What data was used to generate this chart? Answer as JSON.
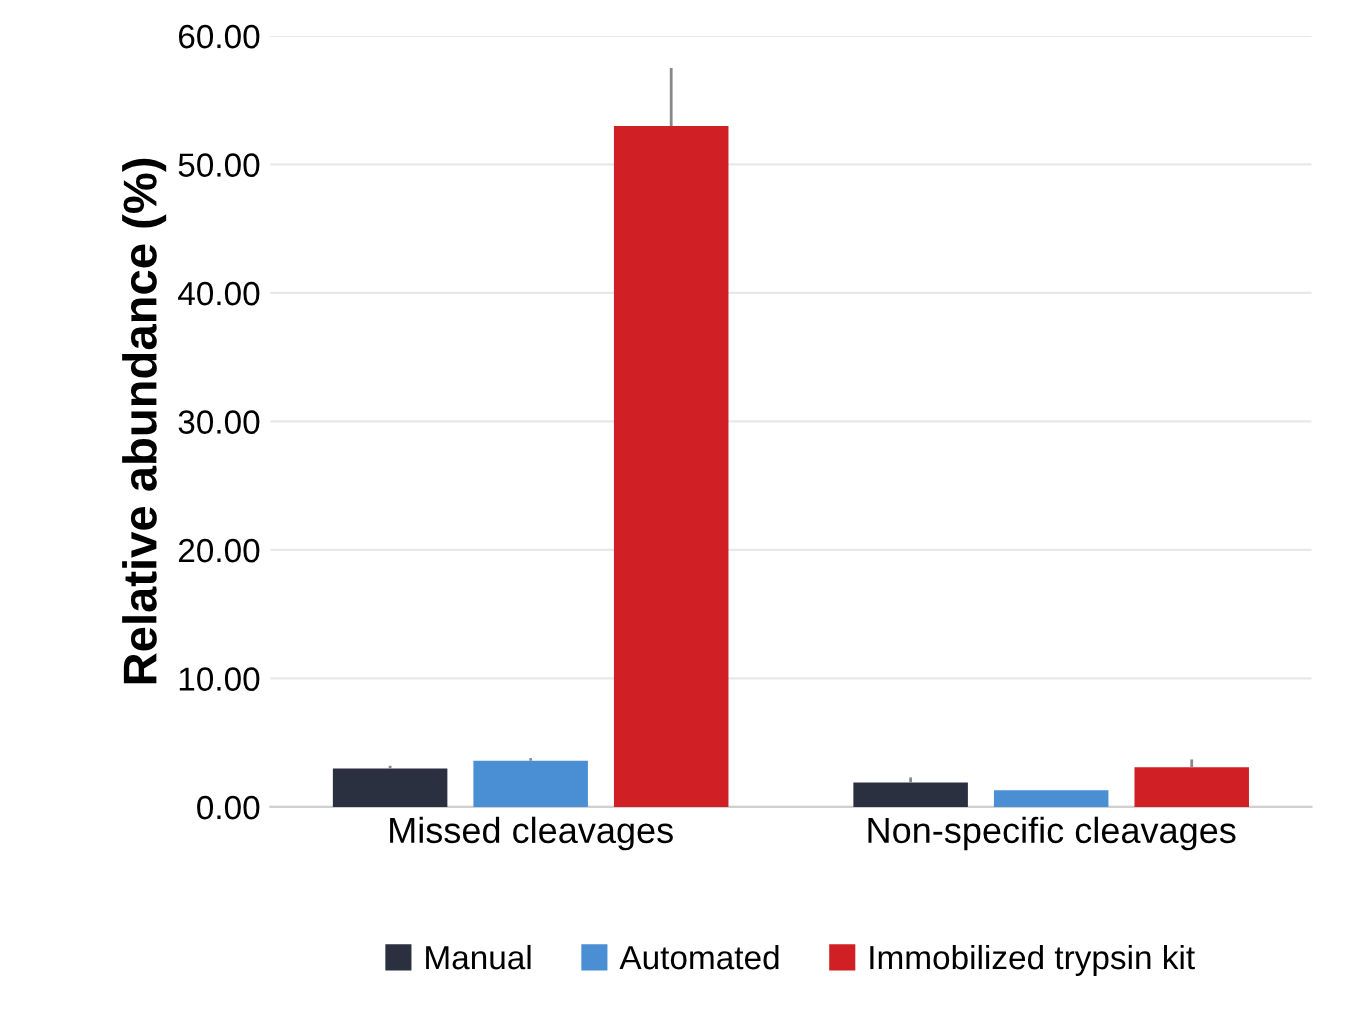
{
  "chart_data": {
    "type": "bar",
    "ylabel": "Relative abundance (%)",
    "categories": [
      "Missed cleavages",
      "Non-specific cleavages"
    ],
    "series": [
      {
        "name": "Manual",
        "color": "#2b3040",
        "values": [
          3.0,
          1.9
        ],
        "errors": [
          0.2,
          0.4
        ]
      },
      {
        "name": "Automated",
        "color": "#4a8fd4",
        "values": [
          3.6,
          1.3
        ],
        "errors": [
          0.2,
          null
        ]
      },
      {
        "name": "Immobilized trypsin kit",
        "color": "#d11f26",
        "values": [
          53.0,
          3.1
        ],
        "errors": [
          4.5,
          0.6
        ]
      }
    ],
    "ylim": [
      0,
      60
    ],
    "yticks": [
      {
        "value": 0,
        "label": "0.00"
      },
      {
        "value": 10,
        "label": "10.00"
      },
      {
        "value": 20,
        "label": "20.00"
      },
      {
        "value": 30,
        "label": "30.00"
      },
      {
        "value": 40,
        "label": "40.00"
      },
      {
        "value": 50,
        "label": "50.00"
      },
      {
        "value": 60,
        "label": "60.00"
      }
    ],
    "grid": "y",
    "legend": "bottom"
  }
}
